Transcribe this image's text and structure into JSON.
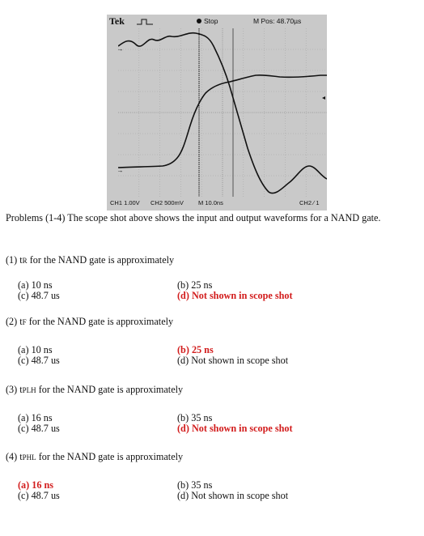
{
  "scope": {
    "brand": "Tek",
    "status": "Stop",
    "m_pos": "M Pos: 48.70µs",
    "ch1_scale": "CH1  1.00V",
    "ch2_scale": "CH2  500mV",
    "time_div": "M 10.0ns",
    "trigger": "CH2 ∕  1",
    "ch1_marker": "1→",
    "ch2_marker": "2→"
  },
  "intro": "Problems (1-4)  The scope shot above shows the input and output waveforms for a NAND gate.",
  "questions": [
    {
      "prefix": "(1) t",
      "sub": "R",
      "suffix": " for the NAND gate is approximately",
      "options": {
        "a": "(a) 10 ns",
        "b": "(b) 25 ns",
        "c": "(c) 48.7 us",
        "d": "(d) Not shown in scope shot"
      },
      "answer": "d"
    },
    {
      "prefix": "(2) t",
      "sub": "F",
      "suffix": " for the NAND gate is approximately",
      "options": {
        "a": "(a) 10 ns",
        "b": "(b) 25 ns",
        "c": "(c) 48.7 us",
        "d": "(d) Not shown in scope shot"
      },
      "answer": "b"
    },
    {
      "prefix": "(3) t",
      "sub": "PLH",
      "suffix": " for the NAND gate is approximately",
      "options": {
        "a": "(a) 16 ns",
        "b": "(b) 35 ns",
        "c": "(c) 48.7 us",
        "d": "(d) Not shown in scope shot"
      },
      "answer": "d"
    },
    {
      "prefix": "(4) t",
      "sub": "PHL",
      "suffix": " for the NAND gate is approximately",
      "options": {
        "a": "(a) 16 ns",
        "b": "(b) 35 ns",
        "c": "(c) 48.7 us",
        "d": "(d) Not shown in scope shot"
      },
      "answer": "a"
    }
  ],
  "colors": {
    "answer": "#d21c1c",
    "screen": "#c9c9c9",
    "trace": "#111111"
  }
}
